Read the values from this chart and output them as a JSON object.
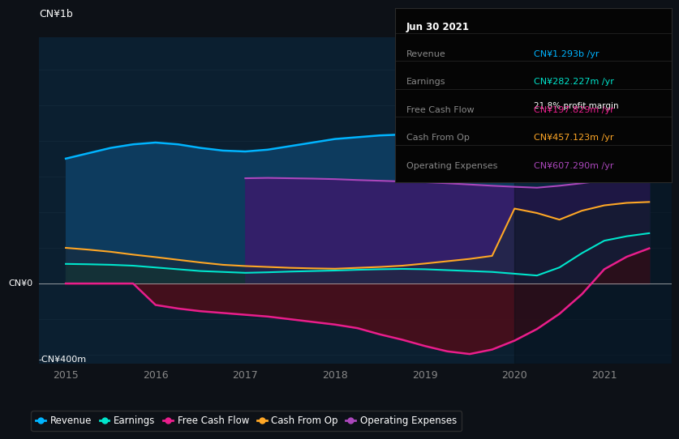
{
  "background_color": "#0d1117",
  "plot_bg_color": "#0b1f30",
  "ylabel_top": "CN¥1b",
  "ylabel_bottom": "-CN¥400m",
  "ylabel_zero": "CN¥0",
  "years": [
    2015.0,
    2015.25,
    2015.5,
    2015.75,
    2016.0,
    2016.25,
    2016.5,
    2016.75,
    2017.0,
    2017.25,
    2017.5,
    2017.75,
    2018.0,
    2018.25,
    2018.5,
    2018.75,
    2019.0,
    2019.25,
    2019.5,
    2019.75,
    2020.0,
    2020.25,
    2020.5,
    2020.75,
    2021.0,
    2021.25,
    2021.5
  ],
  "revenue": [
    700,
    730,
    760,
    780,
    790,
    780,
    760,
    745,
    740,
    750,
    770,
    790,
    810,
    820,
    830,
    835,
    835,
    825,
    815,
    805,
    790,
    775,
    790,
    840,
    920,
    1080,
    1293
  ],
  "earnings": [
    110,
    108,
    105,
    100,
    90,
    80,
    70,
    65,
    60,
    63,
    67,
    70,
    73,
    77,
    80,
    82,
    80,
    75,
    70,
    65,
    55,
    45,
    90,
    170,
    240,
    265,
    282
  ],
  "free_cash_flow": [
    0,
    0,
    0,
    0,
    -120,
    -140,
    -155,
    -165,
    -175,
    -185,
    -200,
    -215,
    -230,
    -250,
    -285,
    -315,
    -350,
    -380,
    -395,
    -370,
    -320,
    -255,
    -170,
    -60,
    80,
    150,
    197
  ],
  "cash_from_op": [
    200,
    190,
    178,
    162,
    148,
    133,
    118,
    105,
    98,
    93,
    88,
    85,
    83,
    88,
    93,
    100,
    112,
    125,
    138,
    155,
    420,
    395,
    358,
    408,
    438,
    452,
    457
  ],
  "operating_expenses": [
    0,
    0,
    0,
    0,
    0,
    0,
    0,
    0,
    590,
    592,
    590,
    588,
    585,
    580,
    576,
    572,
    568,
    562,
    555,
    548,
    542,
    537,
    548,
    562,
    578,
    595,
    607
  ],
  "revenue_color": "#00b4ff",
  "earnings_color": "#00e5cc",
  "free_cash_flow_color": "#e91e8c",
  "cash_from_op_color": "#ffa726",
  "op_expenses_color": "#ab47bc",
  "revenue_fill": "#0d3b5e",
  "earnings_fill": "#0d3d30",
  "op_expenses_fill": "#3a1a6b",
  "fcf_fill": "#4a0e1a",
  "cash_op_fill": "#3a2800",
  "xmin": 2014.7,
  "xmax": 2021.75,
  "ymin": -450,
  "ymax": 1380,
  "xticks": [
    2015,
    2016,
    2017,
    2018,
    2019,
    2020,
    2021
  ],
  "legend_labels": [
    "Revenue",
    "Earnings",
    "Free Cash Flow",
    "Cash From Op",
    "Operating Expenses"
  ],
  "legend_colors": [
    "#00b4ff",
    "#00e5cc",
    "#e91e8c",
    "#ffa726",
    "#ab47bc"
  ],
  "info_box": {
    "date": "Jun 30 2021",
    "revenue_val": "CN¥1.293b",
    "earnings_val": "CN¥282.227m",
    "profit_margin": "21.8%",
    "fcf_val": "CN¥197.829m",
    "cash_from_op_val": "CN¥457.123m",
    "op_exp_val": "CN¥607.290m"
  }
}
